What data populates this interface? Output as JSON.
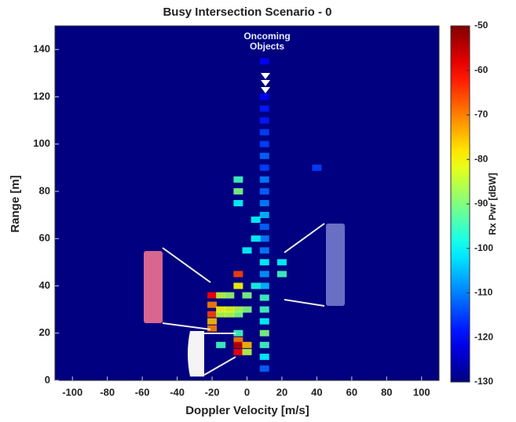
{
  "chart_data": {
    "type": "heatmap",
    "title": "Busy Intersection Scenario - 0",
    "xlabel": "Doppler Velocity [m/s]",
    "ylabel": "Range [m]",
    "colorbar_label": "Rx Pwr [dBW]",
    "annotation": "Oncoming Objects",
    "xlim": [
      -110,
      110
    ],
    "xticks": [
      -100,
      -80,
      -60,
      -40,
      -20,
      0,
      20,
      40,
      60,
      80,
      100
    ],
    "ylim": [
      0,
      150
    ],
    "yticks": [
      0,
      20,
      40,
      60,
      80,
      100,
      120,
      140
    ],
    "clim": [
      -130,
      -50
    ],
    "cticks": [
      -50,
      -60,
      -70,
      -80,
      -90,
      -100,
      -110,
      -120,
      -130
    ],
    "x": [
      10,
      10,
      10,
      10,
      10,
      10,
      10,
      10,
      10,
      10,
      10,
      10,
      10,
      10,
      10,
      10,
      10,
      10,
      10,
      10,
      10,
      10,
      10,
      10,
      10,
      -5,
      -5,
      -5,
      -5,
      -5,
      -5,
      -5,
      -5,
      -5,
      -5,
      -5,
      -20,
      -20,
      -20,
      -20,
      -20,
      -15,
      -15,
      -15,
      -10,
      -10,
      -10,
      -15,
      0,
      0,
      0,
      0,
      0,
      5,
      5,
      5,
      20,
      20,
      40
    ],
    "y": [
      5,
      10,
      15,
      20,
      25,
      30,
      35,
      40,
      45,
      50,
      55,
      60,
      65,
      70,
      75,
      80,
      85,
      90,
      95,
      100,
      105,
      110,
      115,
      120,
      135,
      85,
      80,
      75,
      45,
      40,
      30,
      28,
      20,
      17,
      15,
      12,
      36,
      32,
      28,
      25,
      22,
      36,
      30,
      28,
      36,
      30,
      28,
      15,
      36,
      30,
      15,
      12,
      55,
      68,
      60,
      40,
      45,
      50,
      90
    ],
    "values": [
      -112,
      -100,
      -95,
      -90,
      -100,
      -95,
      -95,
      -105,
      -108,
      -100,
      -110,
      -110,
      -112,
      -105,
      -110,
      -112,
      -110,
      -115,
      -112,
      -115,
      -115,
      -118,
      -118,
      -120,
      -120,
      -95,
      -90,
      -100,
      -65,
      -80,
      -85,
      -90,
      -95,
      -70,
      -55,
      -60,
      -60,
      -70,
      -65,
      -75,
      -70,
      -85,
      -80,
      -85,
      -88,
      -82,
      -85,
      -95,
      -90,
      -90,
      -75,
      -85,
      -100,
      -100,
      -100,
      -98,
      -95,
      -100,
      -115
    ]
  }
}
